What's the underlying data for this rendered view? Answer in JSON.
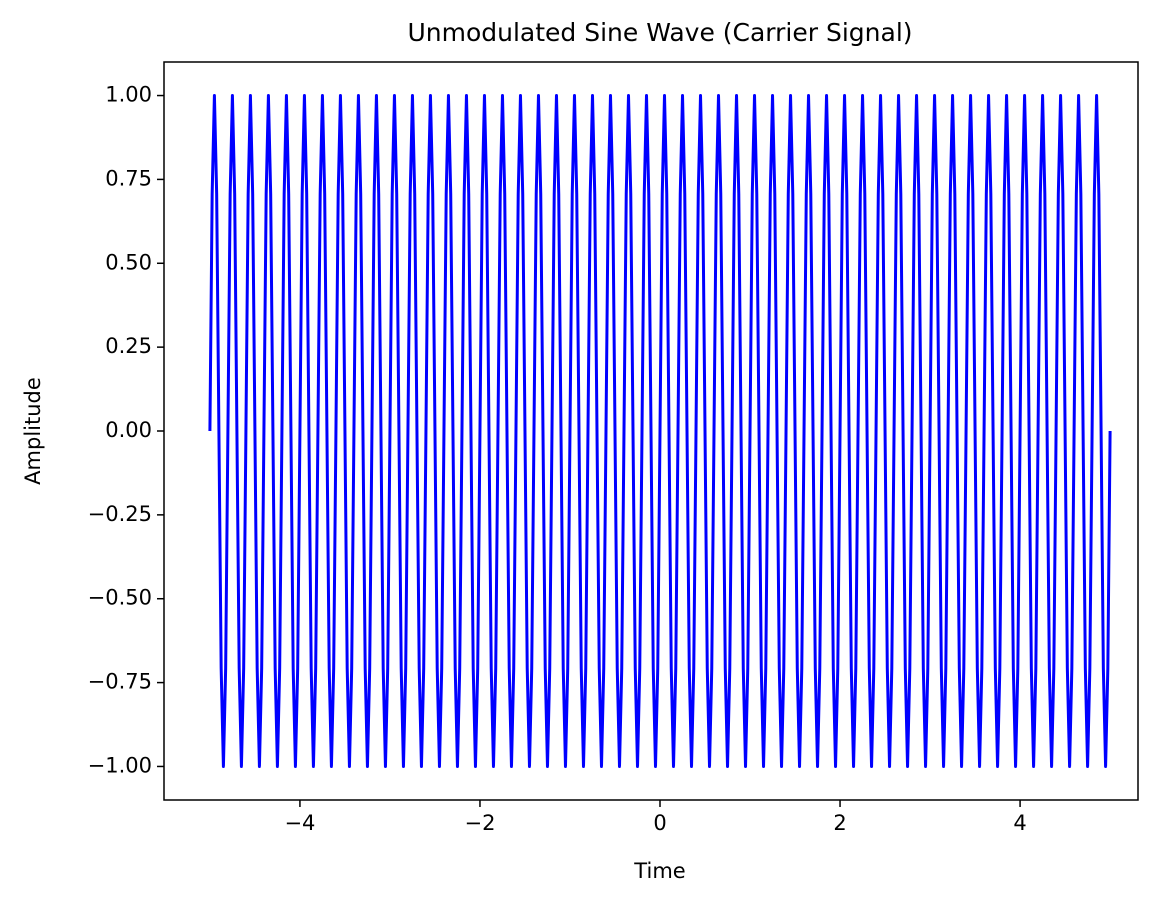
{
  "chart_data": {
    "type": "line",
    "title": "Unmodulated Sine Wave (Carrier Signal)",
    "xlabel": "Time",
    "ylabel": "Amplitude",
    "color": "#0000ff",
    "xlim": [
      -5.51,
      5.31
    ],
    "ylim": [
      -1.1,
      1.1
    ],
    "xticks": [
      {
        "value": -4,
        "label": "−4"
      },
      {
        "value": -2,
        "label": "−2"
      },
      0,
      2,
      4
    ],
    "yticks": [
      {
        "value": -1,
        "label": "−1.00"
      },
      {
        "value": -0.75,
        "label": "−0.75"
      },
      {
        "value": -0.5,
        "label": "−0.50"
      },
      {
        "value": -0.25,
        "label": "−0.25"
      },
      {
        "value": 0,
        "label": "0.00"
      },
      {
        "value": 0.25,
        "label": "0.25"
      },
      {
        "value": 0.5,
        "label": "0.50"
      },
      {
        "value": 0.75,
        "label": "0.75"
      },
      {
        "value": 1,
        "label": "1.00"
      }
    ],
    "x": [
      -5,
      -4.975,
      -4.95,
      -4.925,
      -4.9,
      -4.875,
      -4.85,
      -4.825,
      -4.8,
      -4.775,
      -4.75,
      -4.725,
      -4.7,
      -4.675,
      -4.65,
      -4.625,
      -4.6,
      -4.575,
      -4.55,
      -4.525,
      -4.5,
      -4.475,
      -4.45,
      -4.425,
      -4.4,
      -4.375,
      -4.35,
      -4.325,
      -4.3,
      -4.275,
      -4.25,
      -4.225,
      -4.2,
      -4.175,
      -4.15,
      -4.125,
      -4.1,
      -4.075,
      -4.05,
      -4.025,
      -4,
      -3.975,
      -3.95,
      -3.925,
      -3.9,
      -3.875,
      -3.85,
      -3.825,
      -3.8,
      -3.775,
      -3.75,
      -3.725,
      -3.7,
      -3.675,
      -3.65,
      -3.625,
      -3.6,
      -3.575,
      -3.55,
      -3.525,
      -3.5,
      -3.475,
      -3.45,
      -3.425,
      -3.4,
      -3.375,
      -3.35,
      -3.325,
      -3.3,
      -3.275,
      -3.25,
      -3.225,
      -3.2,
      -3.175,
      -3.15,
      -3.125,
      -3.1,
      -3.075,
      -3.05,
      -3.025,
      -3,
      -2.975,
      -2.95,
      -2.925,
      -2.9,
      -2.875,
      -2.85,
      -2.825,
      -2.8,
      -2.775,
      -2.75,
      -2.725,
      -2.7,
      -2.675,
      -2.65,
      -2.625,
      -2.6,
      -2.575,
      -2.55,
      -2.525,
      -2.5,
      -2.475,
      -2.45,
      -2.425,
      -2.4,
      -2.375,
      -2.35,
      -2.325,
      -2.3,
      -2.275,
      -2.25,
      -2.225,
      -2.2,
      -2.175,
      -2.15,
      -2.125,
      -2.1,
      -2.075,
      -2.05,
      -2.025,
      -2,
      -1.975,
      -1.95,
      -1.925,
      -1.9,
      -1.875,
      -1.85,
      -1.825,
      -1.8,
      -1.775,
      -1.75,
      -1.725,
      -1.7,
      -1.675,
      -1.65,
      -1.625,
      -1.6,
      -1.575,
      -1.55,
      -1.525,
      -1.5,
      -1.475,
      -1.45,
      -1.425,
      -1.4,
      -1.375,
      -1.35,
      -1.325,
      -1.3,
      -1.275,
      -1.25,
      -1.225,
      -1.2,
      -1.175,
      -1.15,
      -1.125,
      -1.1,
      -1.075,
      -1.05,
      -1.025,
      -1,
      -0.975,
      -0.95,
      -0.925,
      -0.9,
      -0.875,
      -0.85,
      -0.825,
      -0.8,
      -0.775,
      -0.75,
      -0.725,
      -0.7,
      -0.675,
      -0.65,
      -0.625,
      -0.6,
      -0.575,
      -0.55,
      -0.525,
      -0.5,
      -0.475,
      -0.45,
      -0.425,
      -0.4,
      -0.375,
      -0.35,
      -0.325,
      -0.3,
      -0.275,
      -0.25,
      -0.225,
      -0.2,
      -0.175,
      -0.15,
      -0.125,
      -0.1,
      -0.075,
      -0.05,
      -0.025,
      0,
      0.025,
      0.05,
      0.075,
      0.1,
      0.125,
      0.15,
      0.175,
      0.2,
      0.225,
      0.25,
      0.275,
      0.3,
      0.325,
      0.35,
      0.375,
      0.4,
      0.425,
      0.45,
      0.475,
      0.5,
      0.525,
      0.55,
      0.575,
      0.6,
      0.625,
      0.65,
      0.675,
      0.7,
      0.725,
      0.75,
      0.775,
      0.8,
      0.825,
      0.85,
      0.875,
      0.9,
      0.925,
      0.95,
      0.975,
      1,
      1.025,
      1.05,
      1.075,
      1.1,
      1.125,
      1.15,
      1.175,
      1.2,
      1.225,
      1.25,
      1.275,
      1.3,
      1.325,
      1.35,
      1.375,
      1.4,
      1.425,
      1.45,
      1.475,
      1.5,
      1.525,
      1.55,
      1.575,
      1.6,
      1.625,
      1.65,
      1.675,
      1.7,
      1.725,
      1.75,
      1.775,
      1.8,
      1.825,
      1.85,
      1.875,
      1.9,
      1.925,
      1.95,
      1.975,
      2,
      2.025,
      2.05,
      2.075,
      2.1,
      2.125,
      2.15,
      2.175,
      2.2,
      2.225,
      2.25,
      2.275,
      2.3,
      2.325,
      2.35,
      2.375,
      2.4,
      2.425,
      2.45,
      2.475,
      2.5,
      2.525,
      2.55,
      2.575,
      2.6,
      2.625,
      2.65,
      2.675,
      2.7,
      2.725,
      2.75,
      2.775,
      2.8,
      2.825,
      2.85,
      2.875,
      2.9,
      2.925,
      2.95,
      2.975,
      3,
      3.025,
      3.05,
      3.075,
      3.1,
      3.125,
      3.15,
      3.175,
      3.2,
      3.225,
      3.25,
      3.275,
      3.3,
      3.325,
      3.35,
      3.375,
      3.4,
      3.425,
      3.45,
      3.475,
      3.5,
      3.525,
      3.55,
      3.575,
      3.6,
      3.625,
      3.65,
      3.675,
      3.7,
      3.725,
      3.75,
      3.775,
      3.8,
      3.825,
      3.85,
      3.875,
      3.9,
      3.925,
      3.95,
      3.975,
      4,
      4.025,
      4.05,
      4.075,
      4.1,
      4.125,
      4.15,
      4.175,
      4.2,
      4.225,
      4.25,
      4.275,
      4.3,
      4.325,
      4.35,
      4.375,
      4.4,
      4.425,
      4.45,
      4.475,
      4.5,
      4.525,
      4.55,
      4.575,
      4.6,
      4.625,
      4.65,
      4.675,
      4.7,
      4.725,
      4.75,
      4.775,
      4.8,
      4.825,
      4.85,
      4.875,
      4.9,
      4.925,
      4.95,
      4.975,
      5
    ],
    "values": [
      0,
      0.707,
      1,
      0.707,
      0,
      -0.707,
      -1,
      -0.707,
      0,
      0.707,
      1,
      0.707,
      0,
      -0.707,
      -1,
      -0.707,
      0,
      0.707,
      1,
      0.707,
      0,
      -0.707,
      -1,
      -0.707,
      0,
      0.707,
      1,
      0.707,
      0,
      -0.707,
      -1,
      -0.707,
      0,
      0.707,
      1,
      0.707,
      0,
      -0.707,
      -1,
      -0.707,
      0,
      0.707,
      1,
      0.707,
      0,
      -0.707,
      -1,
      -0.707,
      0,
      0.707,
      1,
      0.707,
      0,
      -0.707,
      -1,
      -0.707,
      0,
      0.707,
      1,
      0.707,
      0,
      -0.707,
      -1,
      -0.707,
      0,
      0.707,
      1,
      0.707,
      0,
      -0.707,
      -1,
      -0.707,
      0,
      0.707,
      1,
      0.707,
      0,
      -0.707,
      -1,
      -0.707,
      0,
      0.707,
      1,
      0.707,
      0,
      -0.707,
      -1,
      -0.707,
      0,
      0.707,
      1,
      0.707,
      0,
      -0.707,
      -1,
      -0.707,
      0,
      0.707,
      1,
      0.707,
      0,
      -0.707,
      -1,
      -0.707,
      0,
      0.707,
      1,
      0.707,
      0,
      -0.707,
      -1,
      -0.707,
      0,
      0.707,
      1,
      0.707,
      0,
      -0.707,
      -1,
      -0.707,
      0,
      0.707,
      1,
      0.707,
      0,
      -0.707,
      -1,
      -0.707,
      0,
      0.707,
      1,
      0.707,
      0,
      -0.707,
      -1,
      -0.707,
      0,
      0.707,
      1,
      0.707,
      0,
      -0.707,
      -1,
      -0.707,
      0,
      0.707,
      1,
      0.707,
      0,
      -0.707,
      -1,
      -0.707,
      0,
      0.707,
      1,
      0.707,
      0,
      -0.707,
      -1,
      -0.707,
      0,
      0.707,
      1,
      0.707,
      0,
      -0.707,
      -1,
      -0.707,
      0,
      0.707,
      1,
      0.707,
      0,
      -0.707,
      -1,
      -0.707,
      0,
      0.707,
      1,
      0.707,
      0,
      -0.707,
      -1,
      -0.707,
      0,
      0.707,
      1,
      0.707,
      0,
      -0.707,
      -1,
      -0.707,
      0,
      0.707,
      1,
      0.707,
      0,
      -0.707,
      -1,
      -0.707,
      0,
      0.707,
      1,
      0.707,
      0,
      -0.707,
      -1,
      -0.707,
      0,
      0.707,
      1,
      0.707,
      0,
      -0.707,
      -1,
      -0.707,
      0,
      0.707,
      1,
      0.707,
      0,
      -0.707,
      -1,
      -0.707,
      0,
      0.707,
      1,
      0.707,
      0,
      -0.707,
      -1,
      -0.707,
      0,
      0.707,
      1,
      0.707,
      0,
      -0.707,
      -1,
      -0.707,
      0,
      0.707,
      1,
      0.707,
      0,
      -0.707,
      -1,
      -0.707,
      0,
      0.707,
      1,
      0.707,
      0,
      -0.707,
      -1,
      -0.707,
      0,
      0.707,
      1,
      0.707,
      0,
      -0.707,
      -1,
      -0.707,
      0,
      0.707,
      1,
      0.707,
      0,
      -0.707,
      -1,
      -0.707,
      0,
      0.707,
      1,
      0.707,
      0,
      -0.707,
      -1,
      -0.707,
      0,
      0.707,
      1,
      0.707,
      0,
      -0.707,
      -1,
      -0.707,
      0,
      0.707,
      1,
      0.707,
      0,
      -0.707,
      -1,
      -0.707,
      0,
      0.707,
      1,
      0.707,
      0,
      -0.707,
      -1,
      -0.707,
      0,
      0.707,
      1,
      0.707,
      0,
      -0.707,
      -1,
      -0.707,
      0,
      0.707,
      1,
      0.707,
      0,
      -0.707,
      -1,
      -0.707,
      0,
      0.707,
      1,
      0.707,
      0,
      -0.707,
      -1,
      -0.707,
      0,
      0.707,
      1,
      0.707,
      0,
      -0.707,
      -1,
      -0.707,
      0,
      0.707,
      1,
      0.707,
      0,
      -0.707,
      -1,
      -0.707,
      0,
      0.707,
      1,
      0.707,
      0,
      -0.707,
      -1,
      -0.707,
      0,
      0.707,
      1,
      0.707,
      0,
      -0.707,
      -1,
      -0.707,
      0,
      0.707,
      1,
      0.707,
      0,
      -0.707,
      -1,
      -0.707,
      0,
      0.707,
      1,
      0.707,
      0,
      -0.707,
      -1,
      -0.707,
      0,
      0.707,
      1,
      0.707,
      0,
      -0.707,
      -1,
      -0.707,
      0,
      0.707,
      1,
      0.707,
      0,
      -0.707,
      -1,
      -0.707,
      0,
      0.707,
      1,
      0.707,
      0,
      -0.707,
      -1,
      -0.707,
      0
    ]
  }
}
